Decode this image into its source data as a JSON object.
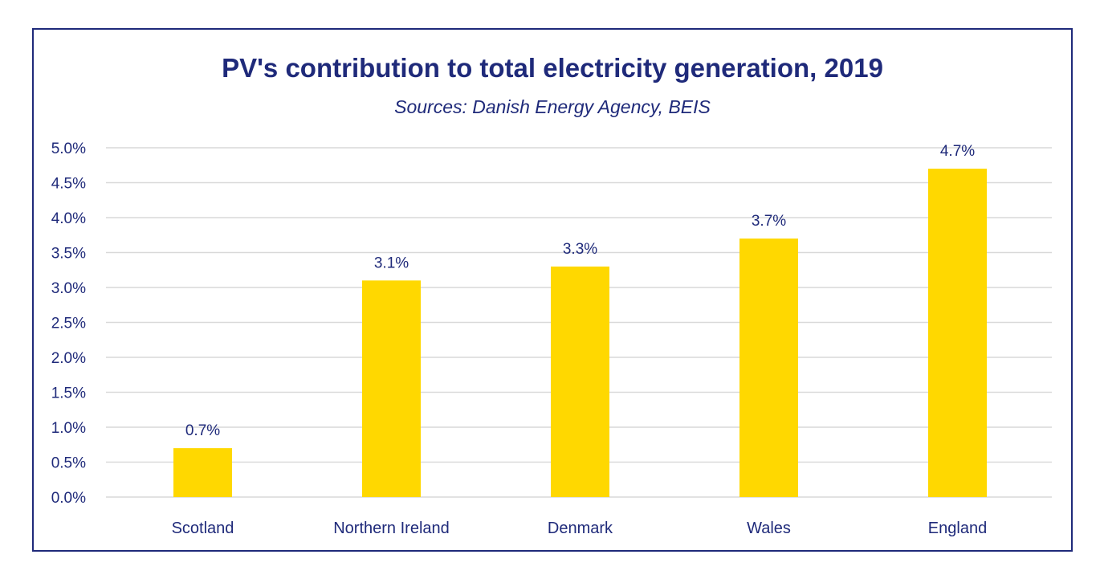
{
  "chart_data": {
    "type": "bar",
    "title": "PV's contribution to total electricity generation, 2019",
    "subtitle": "Sources: Danish Energy Agency, BEIS",
    "categories": [
      "Scotland",
      "Northern Ireland",
      "Denmark",
      "Wales",
      "England"
    ],
    "values": [
      0.7,
      3.1,
      3.3,
      3.7,
      4.7
    ],
    "value_labels": [
      "0.7%",
      "3.1%",
      "3.3%",
      "3.7%",
      "4.7%"
    ],
    "ylim": [
      0,
      5.0
    ],
    "yticks": [
      0.0,
      0.5,
      1.0,
      1.5,
      2.0,
      2.5,
      3.0,
      3.5,
      4.0,
      4.5,
      5.0
    ],
    "ytick_labels": [
      "0.0%",
      "0.5%",
      "1.0%",
      "1.5%",
      "2.0%",
      "2.5%",
      "3.0%",
      "3.5%",
      "4.0%",
      "4.5%",
      "5.0%"
    ],
    "xlabel": "",
    "ylabel": "",
    "grid": true,
    "legend": "none",
    "colors": {
      "bar": "#ffd800",
      "text": "#1f2a7a",
      "frame": "#1f2a7a",
      "grid": "#d9d9d9"
    }
  }
}
